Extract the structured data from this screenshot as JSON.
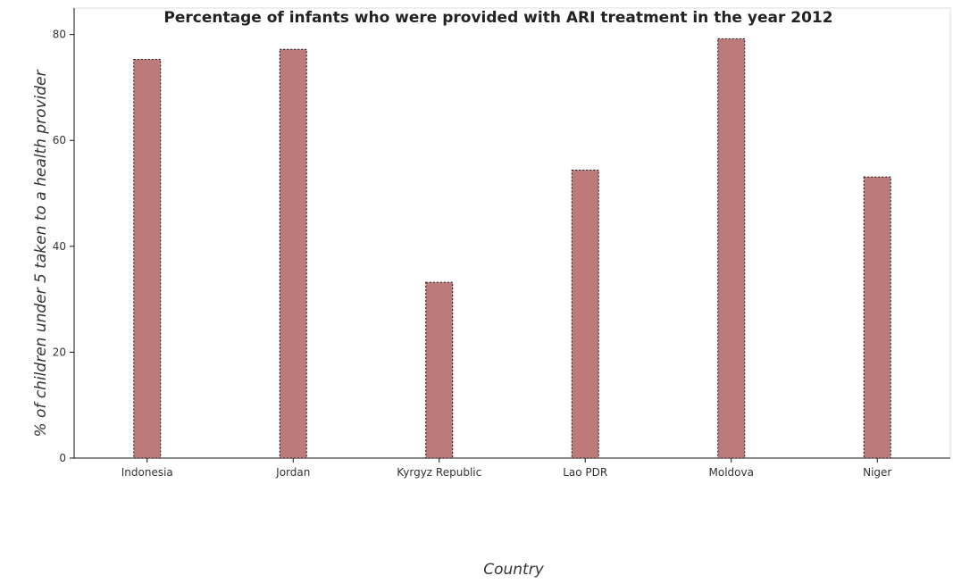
{
  "chart_data": {
    "type": "bar",
    "title": "Percentage of infants who were provided with ARI treatment in the year 2012",
    "xlabel": "Country",
    "ylabel": "% of children under 5 taken to a health provider",
    "categories": [
      "Indonesia",
      "Jordan",
      "Kyrgyz Republic",
      "Lao PDR",
      "Moldova",
      "Niger"
    ],
    "values": [
      75.3,
      77.2,
      33.2,
      54.4,
      79.2,
      53.1
    ],
    "ylim": [
      0,
      85
    ],
    "yticks": [
      "0",
      "20",
      "40",
      "60",
      "80"
    ],
    "grid": false,
    "bar_color": "#bc7a7a",
    "bar_edge_color": "#111111"
  }
}
